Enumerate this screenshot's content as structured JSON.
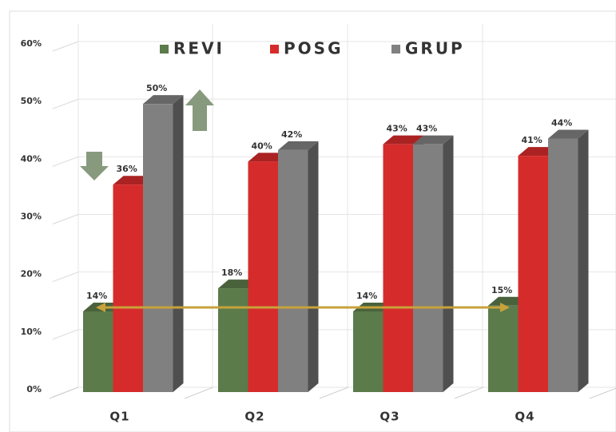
{
  "chart_data": {
    "type": "bar3d",
    "categories": [
      "Q1",
      "Q2",
      "Q3",
      "Q4"
    ],
    "series": [
      {
        "name": "REVI",
        "color": "#5b7b4b",
        "values": [
          14,
          18,
          14,
          15
        ],
        "value_labels": [
          "14%",
          "18%",
          "14%",
          "15%"
        ]
      },
      {
        "name": "POSG",
        "color": "#d62b2b",
        "values": [
          36,
          40,
          43,
          41
        ],
        "value_labels": [
          "36%",
          "40%",
          "43%",
          "41%"
        ]
      },
      {
        "name": "GRUP",
        "color": "#808080",
        "values": [
          50,
          42,
          43,
          44
        ],
        "value_labels": [
          "50%",
          "42%",
          "43%",
          "44%"
        ]
      }
    ],
    "ylim": [
      0,
      60
    ],
    "yticks": [
      {
        "value": 0,
        "label": "0%"
      },
      {
        "value": 10,
        "label": "10%"
      },
      {
        "value": 20,
        "label": "20%"
      },
      {
        "value": 30,
        "label": "30%"
      },
      {
        "value": 40,
        "label": "40%"
      },
      {
        "value": 50,
        "label": "50%"
      },
      {
        "value": 60,
        "label": "60%"
      }
    ],
    "grid": true,
    "legend": "top"
  }
}
